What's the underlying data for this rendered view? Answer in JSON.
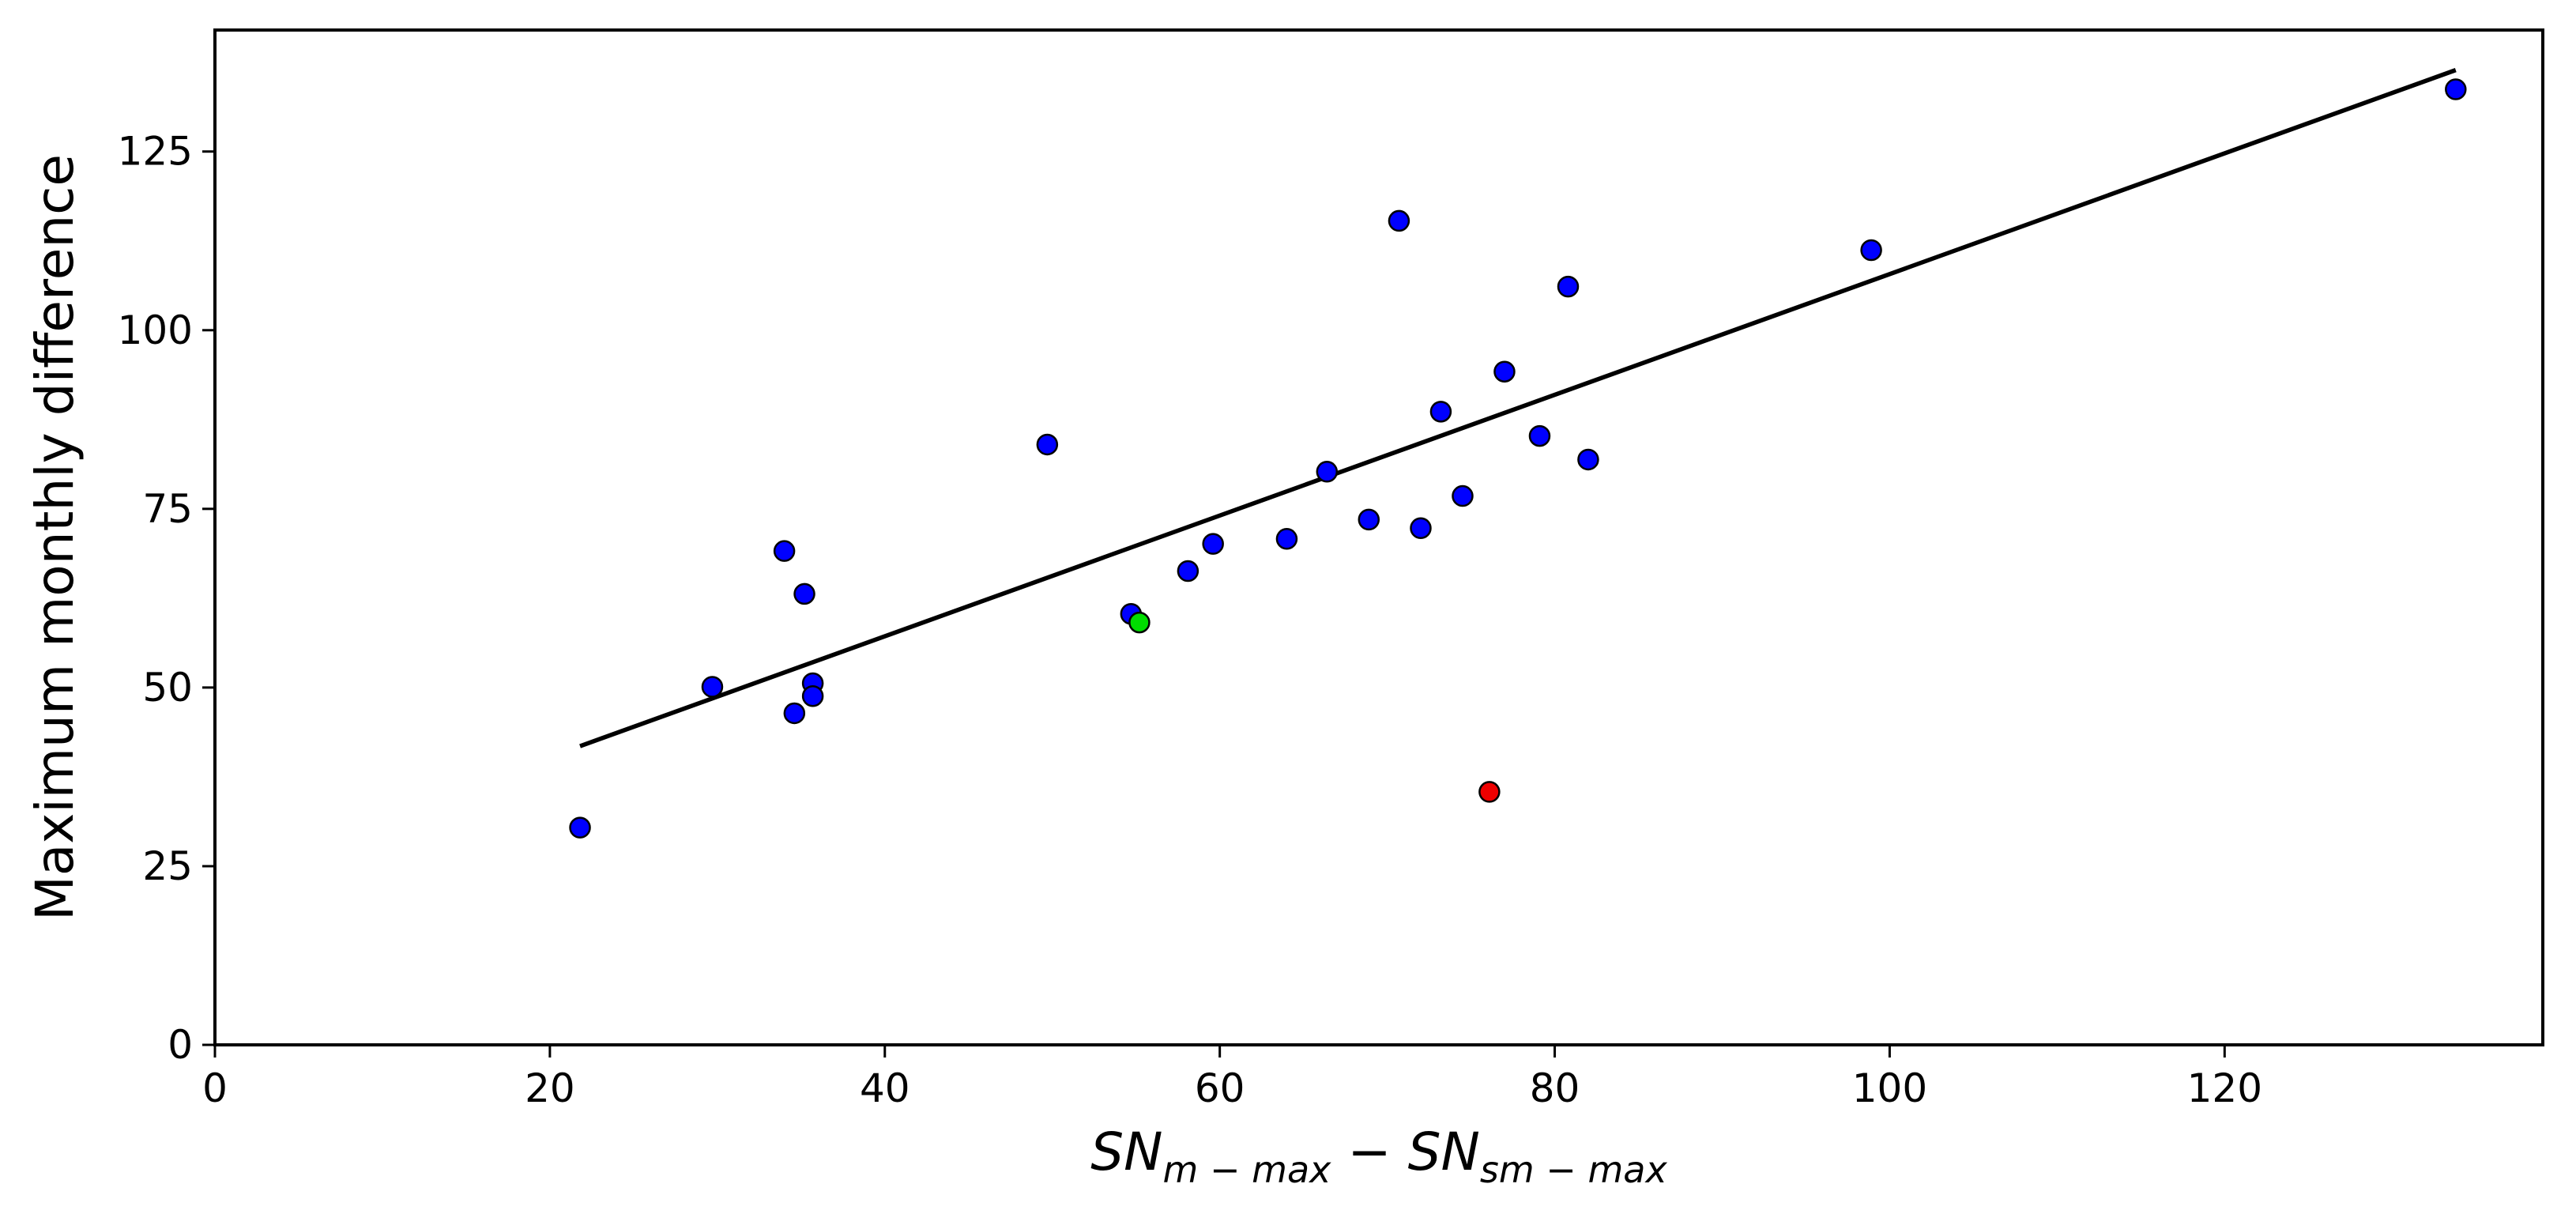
{
  "chart_data": {
    "type": "scatter",
    "title": "",
    "xlabel": {
      "base1": "SN",
      "sub1": "m − max",
      "minus": " − ",
      "base2": "SN",
      "sub2": "sm − max"
    },
    "ylabel": "Maximum monthly difference",
    "xlim": [
      0,
      139
    ],
    "ylim": [
      0,
      142
    ],
    "xticks": [
      0,
      20,
      40,
      60,
      80,
      100,
      120
    ],
    "yticks": [
      0,
      25,
      50,
      75,
      100,
      125
    ],
    "grid": false,
    "legend": "none",
    "series": [
      {
        "name": "points",
        "color": "#0000ff",
        "points": [
          {
            "x": 21.8,
            "y": 30.4
          },
          {
            "x": 29.7,
            "y": 50.1
          },
          {
            "x": 34.0,
            "y": 69.1
          },
          {
            "x": 34.6,
            "y": 46.4
          },
          {
            "x": 35.2,
            "y": 63.1
          },
          {
            "x": 35.7,
            "y": 50.6
          },
          {
            "x": 35.7,
            "y": 48.8
          },
          {
            "x": 49.7,
            "y": 84.0
          },
          {
            "x": 54.7,
            "y": 60.3
          },
          {
            "x": 58.1,
            "y": 66.3
          },
          {
            "x": 59.6,
            "y": 70.1
          },
          {
            "x": 64.0,
            "y": 70.8
          },
          {
            "x": 66.4,
            "y": 80.2
          },
          {
            "x": 68.9,
            "y": 73.5
          },
          {
            "x": 70.7,
            "y": 115.3
          },
          {
            "x": 72.0,
            "y": 72.3
          },
          {
            "x": 73.2,
            "y": 88.6
          },
          {
            "x": 74.5,
            "y": 76.8
          },
          {
            "x": 77.0,
            "y": 94.2
          },
          {
            "x": 79.1,
            "y": 85.2
          },
          {
            "x": 80.8,
            "y": 106.1
          },
          {
            "x": 82.0,
            "y": 81.9
          },
          {
            "x": 98.9,
            "y": 111.2
          },
          {
            "x": 133.8,
            "y": 133.7
          }
        ]
      },
      {
        "name": "highlight-green",
        "color": "#00dd00",
        "points": [
          {
            "x": 55.2,
            "y": 59.1
          }
        ]
      },
      {
        "name": "highlight-red",
        "color": "#ee0000",
        "points": [
          {
            "x": 76.1,
            "y": 35.4
          }
        ]
      }
    ],
    "fit_line": {
      "color": "#000000",
      "points": [
        {
          "x": 21.8,
          "y": 41.8
        },
        {
          "x": 133.8,
          "y": 136.4
        }
      ]
    }
  }
}
